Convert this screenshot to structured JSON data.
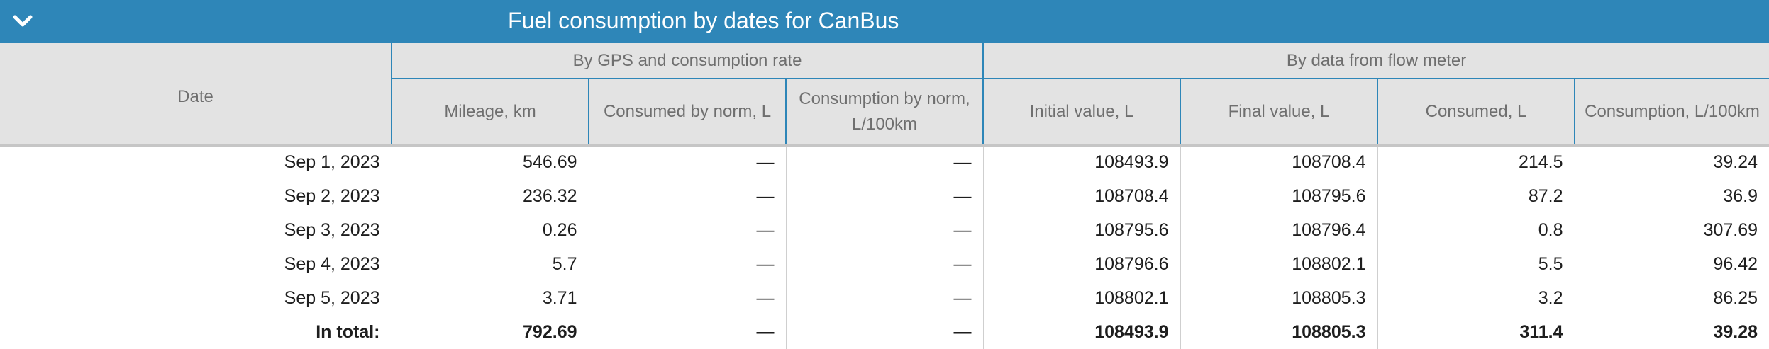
{
  "panel": {
    "title": "Fuel consumption by dates for CanBus",
    "collapse_icon": "chevron-down-icon"
  },
  "columns": {
    "date": "Date",
    "group_gps": "By GPS and consumption rate",
    "group_flow": "By data from flow meter",
    "mileage": "Mileage, km",
    "consumed_by_norm": "Consumed by norm, L",
    "consumption_by_norm": "Consumption by norm, L/100km",
    "initial_value": "Initial value, L",
    "final_value": "Final value, L",
    "consumed": "Consumed, L",
    "consumption": "Consumption, L/100km"
  },
  "rows": [
    {
      "date": "Sep 1, 2023",
      "mileage": "546.69",
      "consumed_by_norm": "—",
      "consumption_by_norm": "—",
      "initial": "108493.9",
      "final": "108708.4",
      "consumed": "214.5",
      "consumption": "39.24"
    },
    {
      "date": "Sep 2, 2023",
      "mileage": "236.32",
      "consumed_by_norm": "—",
      "consumption_by_norm": "—",
      "initial": "108708.4",
      "final": "108795.6",
      "consumed": "87.2",
      "consumption": "36.9"
    },
    {
      "date": "Sep 3, 2023",
      "mileage": "0.26",
      "consumed_by_norm": "—",
      "consumption_by_norm": "—",
      "initial": "108795.6",
      "final": "108796.4",
      "consumed": "0.8",
      "consumption": "307.69"
    },
    {
      "date": "Sep 4, 2023",
      "mileage": "5.7",
      "consumed_by_norm": "—",
      "consumption_by_norm": "—",
      "initial": "108796.6",
      "final": "108802.1",
      "consumed": "5.5",
      "consumption": "96.42"
    },
    {
      "date": "Sep 5, 2023",
      "mileage": "3.71",
      "consumed_by_norm": "—",
      "consumption_by_norm": "—",
      "initial": "108802.1",
      "final": "108805.3",
      "consumed": "3.2",
      "consumption": "86.25"
    }
  ],
  "total": {
    "label": "In total:",
    "mileage": "792.69",
    "consumed_by_norm": "—",
    "consumption_by_norm": "—",
    "initial": "108493.9",
    "final": "108805.3",
    "consumed": "311.4",
    "consumption": "39.28"
  },
  "colors": {
    "header_bar": "#2e86b8",
    "header_text": "#ffffff",
    "column_header_bg": "#e3e3e3",
    "column_header_text": "#6f6f6f"
  }
}
